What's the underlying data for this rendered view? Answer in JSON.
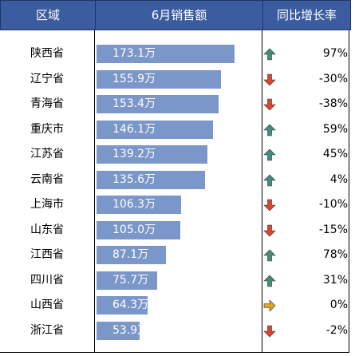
{
  "headers": {
    "region": "区域",
    "sales": "6月销售额",
    "yoy": "同比增长率"
  },
  "colors": {
    "header_bg": "#3b5c9e",
    "bar": "#7b96c8",
    "up": "#3f8f7a",
    "down": "#d9472b",
    "flat": "#e0a020"
  },
  "chart_data": {
    "type": "bar",
    "orientation": "horizontal",
    "xlim": [
      0,
      200
    ],
    "categories": [
      "陕西省",
      "辽宁省",
      "青海省",
      "重庆市",
      "江苏省",
      "云南省",
      "上海市",
      "山东省",
      "江西省",
      "四川省",
      "山西省",
      "浙江省"
    ],
    "series": [
      {
        "values": [
          173.1,
          155.9,
          153.4,
          146.1,
          139.2,
          135.6,
          106.3,
          105.0,
          87.1,
          75.7,
          64.3,
          53.9
        ]
      }
    ],
    "value_labels": [
      "173.1万",
      "155.9万",
      "153.4万",
      "146.1万",
      "139.2万",
      "135.6万",
      "106.3万",
      "105.0万",
      "87.1万",
      "75.7万",
      "64.3万",
      "53.9万"
    ],
    "yoy_labels": [
      "97%",
      "-30%",
      "-38%",
      "59%",
      "45%",
      "4%",
      "-10%",
      "-15%",
      "78%",
      "31%",
      "0%",
      "-2%"
    ],
    "yoy_trend": [
      "up",
      "down",
      "down",
      "up",
      "up",
      "up",
      "down",
      "down",
      "up",
      "up",
      "flat",
      "down"
    ]
  }
}
